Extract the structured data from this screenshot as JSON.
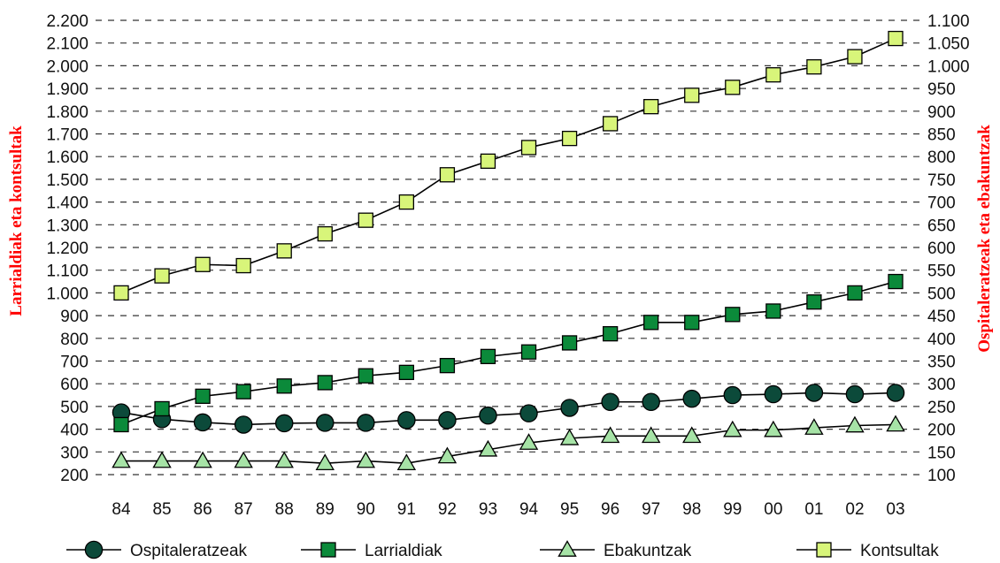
{
  "chart_data": {
    "type": "line",
    "categories": [
      "84",
      "85",
      "86",
      "87",
      "88",
      "89",
      "90",
      "91",
      "92",
      "93",
      "94",
      "95",
      "96",
      "97",
      "98",
      "99",
      "00",
      "01",
      "02",
      "03"
    ],
    "left_axis": {
      "title": "Larrialdiak eta kontsultak",
      "ylim": [
        200,
        2200
      ],
      "ticks": [
        "2.200",
        "2.100",
        "2.000",
        "1.900",
        "1.800",
        "1.700",
        "1.600",
        "1.500",
        "1.400",
        "1.300",
        "1.200",
        "1.100",
        "1.000",
        "900",
        "800",
        "700",
        "600",
        "500",
        "400",
        "300",
        "200"
      ]
    },
    "right_axis": {
      "title": "Ospitaleratzeak eta ebakuntzak",
      "ylim": [
        100,
        1100
      ],
      "ticks": [
        "1.100",
        "1.050",
        "1.000",
        "950",
        "900",
        "850",
        "800",
        "750",
        "700",
        "650",
        "600",
        "550",
        "500",
        "450",
        "400",
        "350",
        "300",
        "250",
        "200",
        "150",
        "100"
      ]
    },
    "grid": "horizontal dashed",
    "legend_position": "bottom",
    "title_color": "#ff0000",
    "series": [
      {
        "name": "Ospitaleratzeak",
        "axis": "right",
        "marker": "circle",
        "color": "#0c4a3a",
        "values": [
          237,
          222,
          215,
          210,
          213,
          214,
          214,
          220,
          220,
          230,
          235,
          247,
          260,
          260,
          267,
          275,
          277,
          280,
          277,
          280
        ]
      },
      {
        "name": "Larrialdiak",
        "axis": "left",
        "marker": "square",
        "color": "#0b8a3a",
        "values": [
          420,
          490,
          545,
          565,
          590,
          605,
          635,
          650,
          680,
          720,
          740,
          780,
          820,
          870,
          870,
          905,
          920,
          960,
          1000,
          1050
        ]
      },
      {
        "name": "Ebakuntzak",
        "axis": "right",
        "marker": "triangle",
        "color": "#a6e3a6",
        "values": [
          130,
          130,
          130,
          130,
          130,
          125,
          130,
          125,
          140,
          155,
          170,
          180,
          185,
          185,
          185,
          198,
          198,
          203,
          208,
          210
        ]
      },
      {
        "name": "Kontsultak",
        "axis": "left",
        "marker": "square",
        "color": "#d8f57a",
        "values": [
          1000,
          1075,
          1125,
          1120,
          1185,
          1260,
          1320,
          1400,
          1520,
          1580,
          1640,
          1680,
          1745,
          1820,
          1870,
          1905,
          1960,
          1995,
          2040,
          2120
        ]
      }
    ]
  }
}
